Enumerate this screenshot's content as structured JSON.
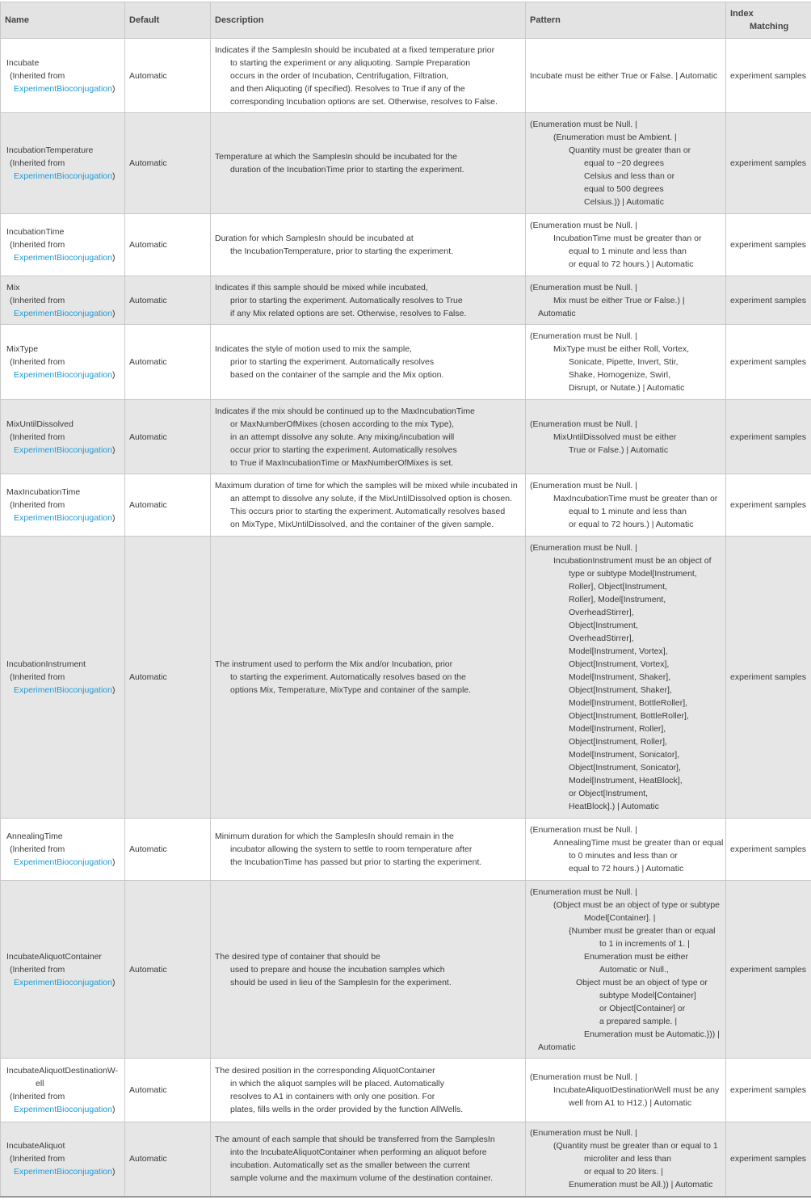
{
  "headers": {
    "name": "Name",
    "default": "Default",
    "description": "Description",
    "pattern": "Pattern",
    "index_line1": "Index",
    "index_line2": "Matching"
  },
  "inherited_prefix": "(Inherited from",
  "inherited_link": "ExperimentBioconjugation",
  "inherited_suffix": ")",
  "colors": {
    "link": "#1a9ad9",
    "row_alt": "#e6e6e6",
    "header_bg": "#e3e3e3"
  },
  "rows": [
    {
      "name": [
        "Incubate"
      ],
      "default": "Automatic",
      "index": "experiment samples",
      "description": [
        "Indicates if the SamplesIn should be incubated at a fixed temperature prior",
        "to starting the experiment or any aliquoting. Sample Preparation",
        "occurs in the order of Incubation, Centrifugation, Filtration,",
        "and then Aliquoting (if specified).  Resolves to True if any of the",
        "corresponding Incubation options are set. Otherwise, resolves to False."
      ],
      "pattern": [
        "Incubate must be either True or False.  | Automatic"
      ]
    },
    {
      "name": [
        "IncubationTemperature"
      ],
      "default": "Automatic",
      "index": "experiment samples",
      "description": [
        "Temperature at which the SamplesIn should be incubated for the",
        "duration of the IncubationTime prior to starting the experiment."
      ],
      "pattern": [
        "(Enumeration must be Null.  |",
        "(Enumeration must be Ambient.  |",
        "Quantity must be greater than or",
        "equal to −20 degrees",
        "Celsius and less than or",
        "equal to 500 degrees",
        "Celsius.)) | Automatic"
      ]
    },
    {
      "name": [
        "IncubationTime"
      ],
      "default": "Automatic",
      "index": "experiment samples",
      "description": [
        "Duration for which SamplesIn should be incubated at",
        "the IncubationTemperature, prior to starting the experiment."
      ],
      "pattern": [
        "(Enumeration must be Null.  |",
        "IncubationTime must be greater than or",
        "equal to 1 minute and less than",
        "or equal to 72 hours.) | Automatic"
      ]
    },
    {
      "name": [
        "Mix"
      ],
      "default": "Automatic",
      "index": "experiment samples",
      "description": [
        "Indicates if this sample should be mixed while incubated,",
        "prior to starting the experiment.  Automatically resolves to True",
        "if any Mix related options are set. Otherwise, resolves to False."
      ],
      "pattern": [
        "(Enumeration must be Null.  |",
        "Mix must be either True or False.) |",
        "Automatic"
      ]
    },
    {
      "name": [
        "MixType"
      ],
      "default": "Automatic",
      "index": "experiment samples",
      "description": [
        "Indicates the style of motion used to mix the sample,",
        "prior to starting the experiment.  Automatically resolves",
        "based on the container of the sample and the Mix option."
      ],
      "pattern": [
        "(Enumeration must be Null.  |",
        "MixType must be either Roll, Vortex,",
        "Sonicate, Pipette, Invert, Stir,",
        "Shake, Homogenize, Swirl,",
        "Disrupt, or Nutate.) | Automatic"
      ]
    },
    {
      "name": [
        "MixUntilDissolved"
      ],
      "default": "Automatic",
      "index": "experiment samples",
      "description": [
        "Indicates if the mix should be continued up to the MaxIncubationTime",
        "or MaxNumberOfMixes (chosen according to the mix Type),",
        "in an attempt dissolve any solute. Any mixing/incubation will",
        "occur prior to starting the experiment.  Automatically resolves",
        "to True if MaxIncubationTime or MaxNumberOfMixes is set."
      ],
      "pattern": [
        "(Enumeration must be Null.  |",
        "MixUntilDissolved must be either",
        "True or False.) | Automatic"
      ]
    },
    {
      "name": [
        "MaxIncubationTime"
      ],
      "default": "Automatic",
      "index": "experiment samples",
      "description": [
        "Maximum duration of time for which the samples will be mixed while incubated in",
        "an attempt to dissolve any solute, if the MixUntilDissolved option is chosen.",
        "This occurs prior to starting the experiment.  Automatically resolves based",
        "on MixType, MixUntilDissolved, and the container of the given sample."
      ],
      "pattern": [
        "(Enumeration must be Null.  |",
        "MaxIncubationTime must be greater than or",
        "equal to 1 minute and less than",
        "or equal to 72 hours.) | Automatic"
      ]
    },
    {
      "name": [
        "IncubationInstrument"
      ],
      "default": "Automatic",
      "index": "experiment samples",
      "description": [
        "The instrument used to perform the Mix and/or Incubation, prior",
        "to starting the experiment.  Automatically resolves based on the",
        "options Mix, Temperature, MixType and container of the sample."
      ],
      "pattern": [
        "(Enumeration must be Null.  |",
        "IncubationInstrument must be an object of",
        "type or subtype Model[Instrument,",
        "Roller], Object[Instrument,",
        "Roller], Model[Instrument,",
        "OverheadStirrer],",
        "Object[Instrument,",
        "OverheadStirrer],",
        "Model[Instrument, Vortex],",
        "Object[Instrument, Vortex],",
        "Model[Instrument, Shaker],",
        "Object[Instrument, Shaker],",
        "Model[Instrument, BottleRoller],",
        "Object[Instrument, BottleRoller],",
        "Model[Instrument, Roller],",
        "Object[Instrument, Roller],",
        "Model[Instrument, Sonicator],",
        "Object[Instrument, Sonicator],",
        "Model[Instrument, HeatBlock],",
        "or Object[Instrument,",
        "HeatBlock].) | Automatic"
      ]
    },
    {
      "name": [
        "AnnealingTime"
      ],
      "default": "Automatic",
      "index": "experiment samples",
      "description": [
        "Minimum duration for which the SamplesIn should remain in the",
        "incubator allowing the system to settle to room temperature after",
        "the IncubationTime has passed but prior to starting the experiment."
      ],
      "pattern": [
        "(Enumeration must be Null.  |",
        "AnnealingTime must be greater than or equal",
        "to 0 minutes and less than or",
        "equal to 72 hours.) | Automatic"
      ]
    },
    {
      "name": [
        "IncubateAliquotContainer"
      ],
      "default": "Automatic",
      "index": "experiment samples",
      "description": [
        "The desired type of container that should be",
        "used to prepare and house the incubation samples which",
        "should be used in lieu of the SamplesIn for the experiment."
      ],
      "pattern": [
        "(Enumeration must be Null.  |",
        "(Object must be an object of type or subtype",
        "Model[Container]. |",
        "{Number must be greater than or equal",
        "to 1 in increments of 1. |",
        "Enumeration must be either",
        "Automatic or Null.,",
        "Object must be an object of type or",
        "subtype Model[Container]",
        "or Object[Container] or",
        "a prepared sample. |",
        "Enumeration must be Automatic.})) |",
        "Automatic"
      ]
    },
    {
      "name": [
        "IncubateAliquotDestinationW-",
        "ell"
      ],
      "default": "Automatic",
      "index": "experiment samples",
      "description": [
        "The desired position in the corresponding AliquotContainer",
        "in which the aliquot samples will be placed.  Automatically",
        "resolves to A1 in containers with only one position.  For",
        "plates, fills wells in the order provided by the function AllWells."
      ],
      "pattern": [
        "(Enumeration must be Null.  |",
        "IncubateAliquotDestinationWell must be any",
        "well from A1 to H12.) | Automatic"
      ]
    },
    {
      "name": [
        "IncubateAliquot"
      ],
      "default": "Automatic",
      "index": "experiment samples",
      "description": [
        "The amount of each sample that should be transferred from the SamplesIn",
        "into the IncubateAliquotContainer when performing an aliquot before",
        "incubation.  Automatically set as the smaller between the current",
        "sample volume and the maximum volume of the destination container."
      ],
      "pattern": [
        "(Enumeration must be Null.  |",
        "(Quantity must be greater than or equal to 1",
        "microliter and less than",
        "or equal to 20 liters. |",
        "Enumeration must be All.)) | Automatic"
      ]
    }
  ]
}
